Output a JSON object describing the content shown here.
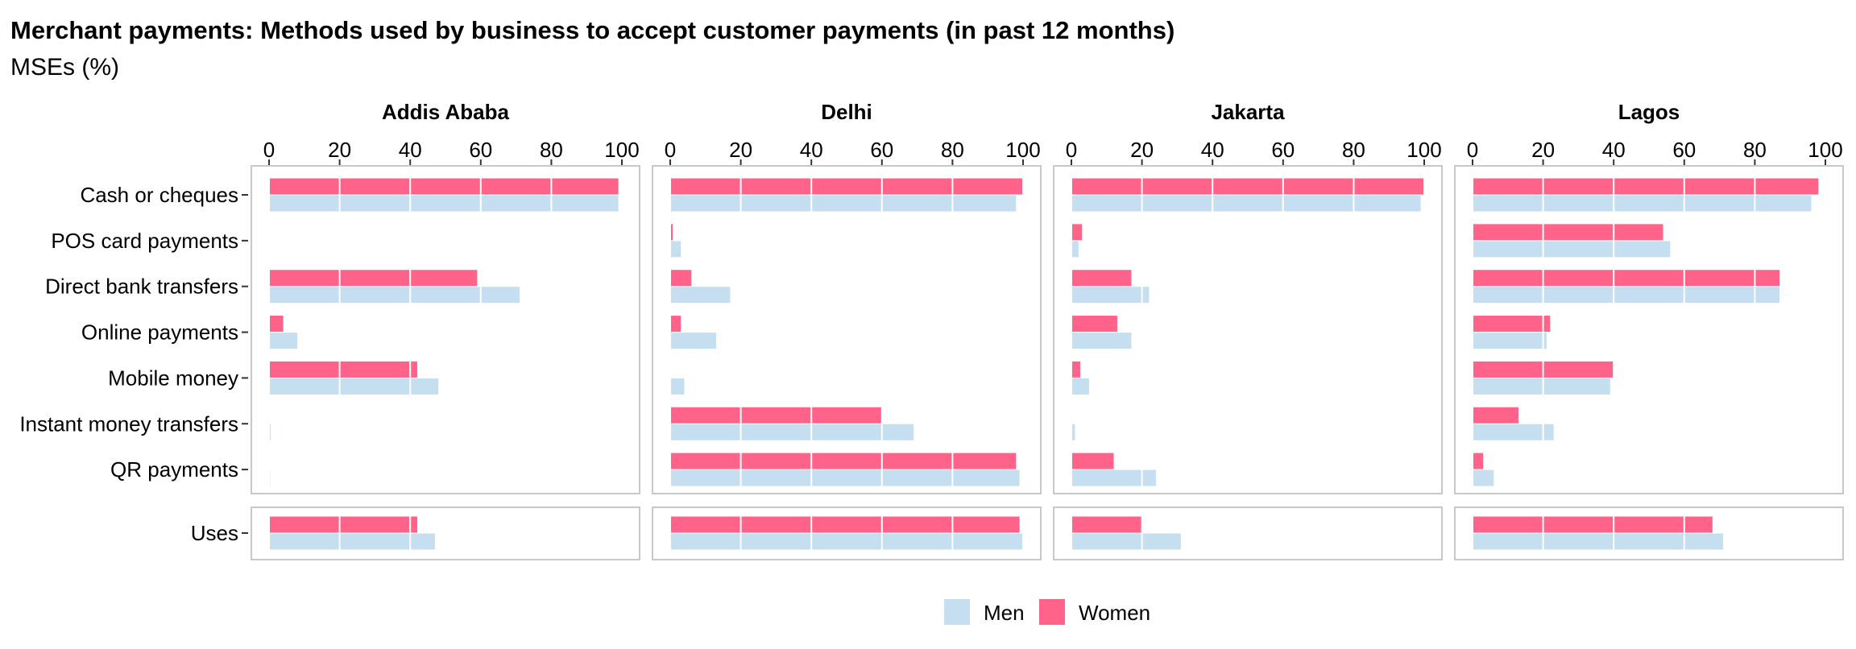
{
  "chart_data": {
    "type": "bar",
    "orientation": "horizontal",
    "title": "Merchant payments: Methods used by business to accept customer payments (in past 12 months)",
    "subtitle": "MSEs (%)",
    "xlim": [
      0,
      100
    ],
    "ticks": [
      0,
      20,
      40,
      60,
      80,
      100
    ],
    "tick_labels": [
      "0",
      "20",
      "40",
      "60",
      "80",
      "100"
    ],
    "grid": true,
    "legend_position": "bottom",
    "colors": {
      "Men": "#c6dff0",
      "Women": "#ff6389"
    },
    "series_order": [
      "Women",
      "Men"
    ],
    "legend": [
      {
        "name": "Men",
        "color": "#c6dff0"
      },
      {
        "name": "Women",
        "color": "#ff6389"
      }
    ],
    "groups": [
      {
        "categories": [
          "Cash or cheques",
          "POS card payments",
          "Direct bank transfers",
          "Online payments",
          "Mobile money",
          "Instant money transfers",
          "QR payments"
        ]
      },
      {
        "categories": [
          "Uses"
        ]
      }
    ],
    "facets": [
      {
        "name": "Addis Ababa",
        "values": {
          "Cash or cheques": {
            "Women": 99,
            "Men": 99
          },
          "POS card payments": {
            "Women": 0,
            "Men": 0
          },
          "Direct bank transfers": {
            "Women": 59,
            "Men": 71
          },
          "Online payments": {
            "Women": 4,
            "Men": 8
          },
          "Mobile money": {
            "Women": 42,
            "Men": 48
          },
          "Instant money transfers": {
            "Women": 0,
            "Men": 0.5
          },
          "QR payments": {
            "Women": 0,
            "Men": 0.3
          },
          "Uses": {
            "Women": 42,
            "Men": 47
          }
        }
      },
      {
        "name": "Delhi",
        "values": {
          "Cash or cheques": {
            "Women": 100,
            "Men": 98
          },
          "POS card payments": {
            "Women": 0.7,
            "Men": 3
          },
          "Direct bank transfers": {
            "Women": 6,
            "Men": 17
          },
          "Online payments": {
            "Women": 3,
            "Men": 13
          },
          "Mobile money": {
            "Women": 0,
            "Men": 4
          },
          "Instant money transfers": {
            "Women": 60,
            "Men": 69
          },
          "QR payments": {
            "Women": 98,
            "Men": 99
          },
          "Uses": {
            "Women": 99,
            "Men": 100
          }
        }
      },
      {
        "name": "Jakarta",
        "values": {
          "Cash or cheques": {
            "Women": 100,
            "Men": 99
          },
          "POS card payments": {
            "Women": 3,
            "Men": 2
          },
          "Direct bank transfers": {
            "Women": 17,
            "Men": 22
          },
          "Online payments": {
            "Women": 13,
            "Men": 17
          },
          "Mobile money": {
            "Women": 2.5,
            "Men": 5
          },
          "Instant money transfers": {
            "Women": 0,
            "Men": 1
          },
          "QR payments": {
            "Women": 12,
            "Men": 24
          },
          "Uses": {
            "Women": 20,
            "Men": 31
          }
        }
      },
      {
        "name": "Lagos",
        "values": {
          "Cash or cheques": {
            "Women": 98,
            "Men": 96
          },
          "POS card payments": {
            "Women": 54,
            "Men": 56
          },
          "Direct bank transfers": {
            "Women": 87,
            "Men": 87
          },
          "Online payments": {
            "Women": 22,
            "Men": 21
          },
          "Mobile money": {
            "Women": 40,
            "Men": 39
          },
          "Instant money transfers": {
            "Women": 13,
            "Men": 23
          },
          "QR payments": {
            "Women": 3,
            "Men": 6
          },
          "Uses": {
            "Women": 68,
            "Men": 71
          }
        }
      }
    ]
  }
}
